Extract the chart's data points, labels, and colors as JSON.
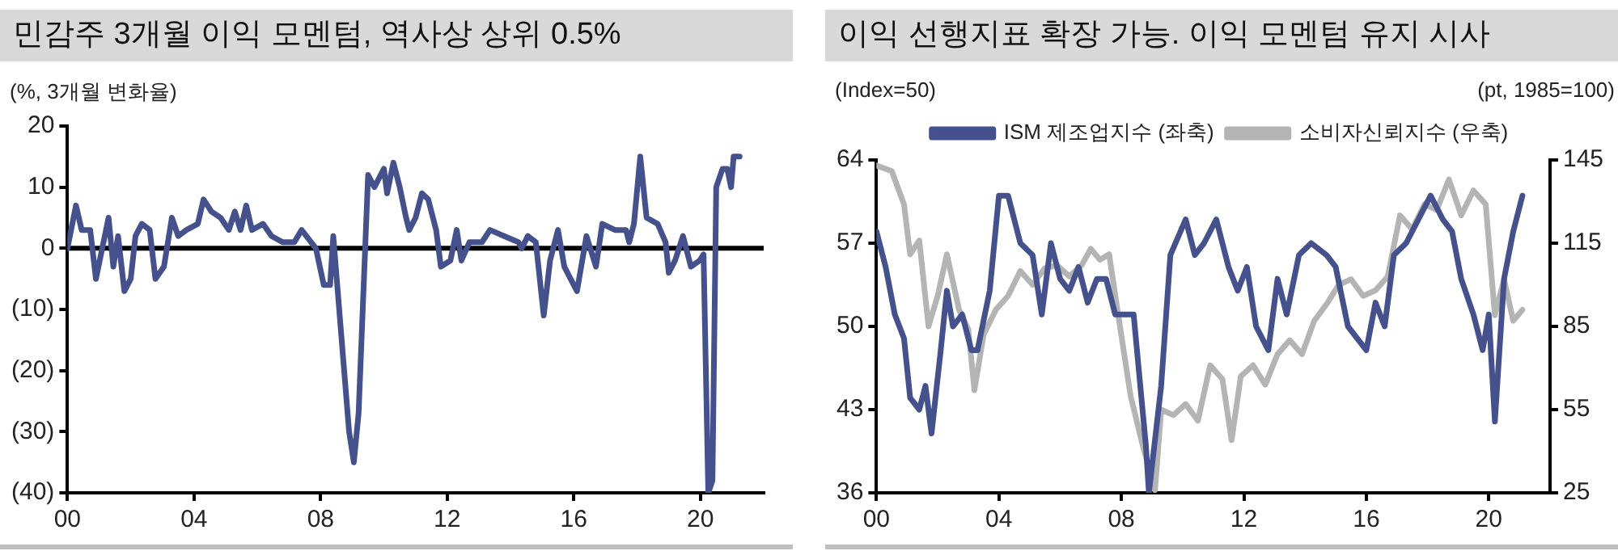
{
  "chart_data": [
    {
      "type": "line",
      "title": "민감주 3개월 이익 모멘텀, 역사상 상위 0.5%",
      "ylabel": "(%, 3개월 변화율)",
      "xlim": [
        2000,
        2022
      ],
      "xticks": [
        {
          "value": 2000,
          "label": "00"
        },
        {
          "value": 2004,
          "label": "04"
        },
        {
          "value": 2008,
          "label": "08"
        },
        {
          "value": 2012,
          "label": "12"
        },
        {
          "value": 2016,
          "label": "16"
        },
        {
          "value": 2020,
          "label": "20"
        }
      ],
      "ylim": [
        -40,
        20
      ],
      "yticks": [
        {
          "value": -40,
          "label": "(40)"
        },
        {
          "value": -30,
          "label": "(30)"
        },
        {
          "value": -20,
          "label": "(20)"
        },
        {
          "value": -10,
          "label": "(10)"
        },
        0,
        10,
        20
      ],
      "grid": false,
      "marker": "none",
      "line_style": "solid",
      "ref_lines": [
        {
          "axis": "y",
          "value": 0,
          "color": "#000000"
        }
      ],
      "series": [
        {
          "color": "#44518c",
          "x": [
            2000,
            2000.27,
            2000.45,
            2000.72,
            2000.9,
            2001.1,
            2001.3,
            2001.45,
            2001.6,
            2001.8,
            2002.0,
            2002.15,
            2002.35,
            2002.6,
            2002.78,
            2003.05,
            2003.3,
            2003.5,
            2003.76,
            2004.12,
            2004.3,
            2004.55,
            2004.84,
            2005.1,
            2005.29,
            2005.47,
            2005.65,
            2005.83,
            2006.18,
            2006.45,
            2006.8,
            2007.17,
            2007.4,
            2007.85,
            2008.1,
            2008.3,
            2008.4,
            2008.9,
            2009.05,
            2009.2,
            2009.5,
            2009.7,
            2010.0,
            2010.1,
            2010.3,
            2010.5,
            2010.7,
            2010.8,
            2011.0,
            2011.2,
            2011.4,
            2011.65,
            2011.8,
            2012.1,
            2012.3,
            2012.45,
            2012.7,
            2013.1,
            2013.35,
            2013.8,
            2014.25,
            2014.35,
            2014.55,
            2014.8,
            2015.05,
            2015.25,
            2015.5,
            2015.7,
            2016.1,
            2016.4,
            2016.7,
            2016.9,
            2017.3,
            2017.65,
            2017.75,
            2017.9,
            2018.1,
            2018.3,
            2018.65,
            2018.9,
            2019.0,
            2019.2,
            2019.45,
            2019.7,
            2019.98,
            2020.1,
            2020.25,
            2020.38,
            2020.5,
            2020.7,
            2020.85,
            2020.97,
            2021.05,
            2021.24
          ],
          "values": [
            0,
            7,
            3,
            3,
            -5,
            0,
            5,
            -3,
            2,
            -7,
            -5,
            2,
            4,
            3,
            -5,
            -3,
            5,
            2,
            3,
            4,
            8,
            6,
            5,
            3,
            6,
            3,
            7,
            3,
            4,
            2,
            1,
            1,
            3,
            0,
            -6,
            -6,
            2,
            -30,
            -35,
            -27,
            12,
            10,
            13,
            9,
            14,
            10,
            5,
            3,
            5,
            9,
            8,
            3,
            -3,
            -2,
            3,
            -2,
            1,
            1,
            3,
            2,
            1,
            0,
            2,
            1,
            -11,
            -2,
            3,
            -3,
            -7,
            2,
            -3,
            4,
            3,
            3,
            1,
            4,
            15,
            5,
            4,
            1,
            -4,
            -2,
            2,
            -3,
            -2,
            -1,
            -40,
            -38,
            10,
            13,
            13,
            10,
            15,
            15
          ]
        }
      ]
    },
    {
      "type": "line",
      "title": "이익 선행지표 확장 가능. 이익 모멘텀 유지 시사",
      "ylabel": "(Index=50)",
      "y2label": "(pt, 1985=100)",
      "xlim": [
        2000,
        2022
      ],
      "xticks": [
        {
          "value": 2000,
          "label": "00"
        },
        {
          "value": 2004,
          "label": "04"
        },
        {
          "value": 2008,
          "label": "08"
        },
        {
          "value": 2012,
          "label": "12"
        },
        {
          "value": 2016,
          "label": "16"
        },
        {
          "value": 2020,
          "label": "20"
        }
      ],
      "ylim": [
        36,
        64
      ],
      "yticks": [
        36,
        43,
        50,
        57,
        64
      ],
      "y2lim": [
        25,
        145
      ],
      "y2ticks": [
        25,
        55,
        85,
        115,
        145
      ],
      "grid": false,
      "legend": "top",
      "marker": "none",
      "line_style": "solid",
      "series": [
        {
          "name": "ISM 제조업지수 (좌축)",
          "color": "#44518c",
          "x": [
            2000,
            2000.3,
            2000.6,
            2000.9,
            2001.1,
            2001.4,
            2001.6,
            2001.8,
            2002.1,
            2002.3,
            2002.5,
            2002.8,
            2003.1,
            2003.3,
            2003.7,
            2004.0,
            2004.3,
            2004.7,
            2005.1,
            2005.4,
            2005.7,
            2006.0,
            2006.3,
            2006.6,
            2006.9,
            2007.2,
            2007.5,
            2007.8,
            2008.1,
            2008.4,
            2008.8,
            2008.9,
            2009.3,
            2009.6,
            2010.1,
            2010.4,
            2010.7,
            2011.1,
            2011.5,
            2011.8,
            2012.1,
            2012.4,
            2012.8,
            2013.1,
            2013.4,
            2013.8,
            2014.2,
            2014.7,
            2015.0,
            2015.4,
            2016.0,
            2016.3,
            2016.6,
            2016.9,
            2017.3,
            2017.7,
            2018.1,
            2018.5,
            2018.8,
            2019.1,
            2019.5,
            2019.8,
            2020.0,
            2020.2,
            2020.5,
            2020.8,
            2021.1
          ],
          "values": [
            58,
            55,
            51,
            49,
            44,
            43,
            45,
            41,
            48,
            53,
            50,
            51,
            48,
            48,
            53,
            61,
            61,
            57,
            56,
            51,
            57,
            54,
            53,
            55,
            52,
            54,
            54,
            51,
            51,
            51,
            40,
            36,
            45,
            56,
            59,
            56,
            57,
            59,
            55,
            53,
            55,
            50,
            48,
            54,
            51,
            56,
            57,
            56,
            55,
            50,
            48,
            52,
            50,
            56,
            57,
            59,
            61,
            59,
            58,
            54,
            51,
            48,
            51,
            42,
            54,
            58,
            61
          ]
        },
        {
          "name": "소비자신뢰지수 (우축)",
          "color": "#b4b4b4",
          "axis": "y2",
          "x": [
            2000,
            2000.5,
            2000.9,
            2001.1,
            2001.4,
            2001.7,
            2002.0,
            2002.3,
            2002.7,
            2003.0,
            2003.2,
            2003.5,
            2003.9,
            2004.3,
            2004.7,
            2005.1,
            2005.5,
            2005.9,
            2006.3,
            2006.7,
            2007.0,
            2007.3,
            2007.6,
            2007.9,
            2008.3,
            2008.7,
            2009.1,
            2009.3,
            2009.7,
            2010.1,
            2010.5,
            2010.9,
            2011.3,
            2011.6,
            2011.9,
            2012.3,
            2012.7,
            2013.1,
            2013.5,
            2013.9,
            2014.3,
            2014.7,
            2015.1,
            2015.5,
            2015.9,
            2016.3,
            2016.7,
            2017.1,
            2017.5,
            2017.9,
            2018.3,
            2018.7,
            2019.1,
            2019.5,
            2019.9,
            2020.2,
            2020.5,
            2020.8,
            2021.1
          ],
          "values": [
            143,
            141,
            129,
            111,
            116,
            85,
            96,
            111,
            91,
            84,
            62,
            82,
            91,
            96,
            105,
            100,
            106,
            107,
            103,
            107,
            113,
            109,
            111,
            89,
            60,
            42,
            26,
            55,
            53,
            57,
            51,
            71,
            66,
            44,
            67,
            71,
            64,
            75,
            80,
            75,
            87,
            93,
            100,
            102,
            96,
            98,
            103,
            125,
            120,
            129,
            127,
            138,
            125,
            134,
            129,
            89,
            102,
            87,
            91
          ]
        }
      ]
    }
  ]
}
